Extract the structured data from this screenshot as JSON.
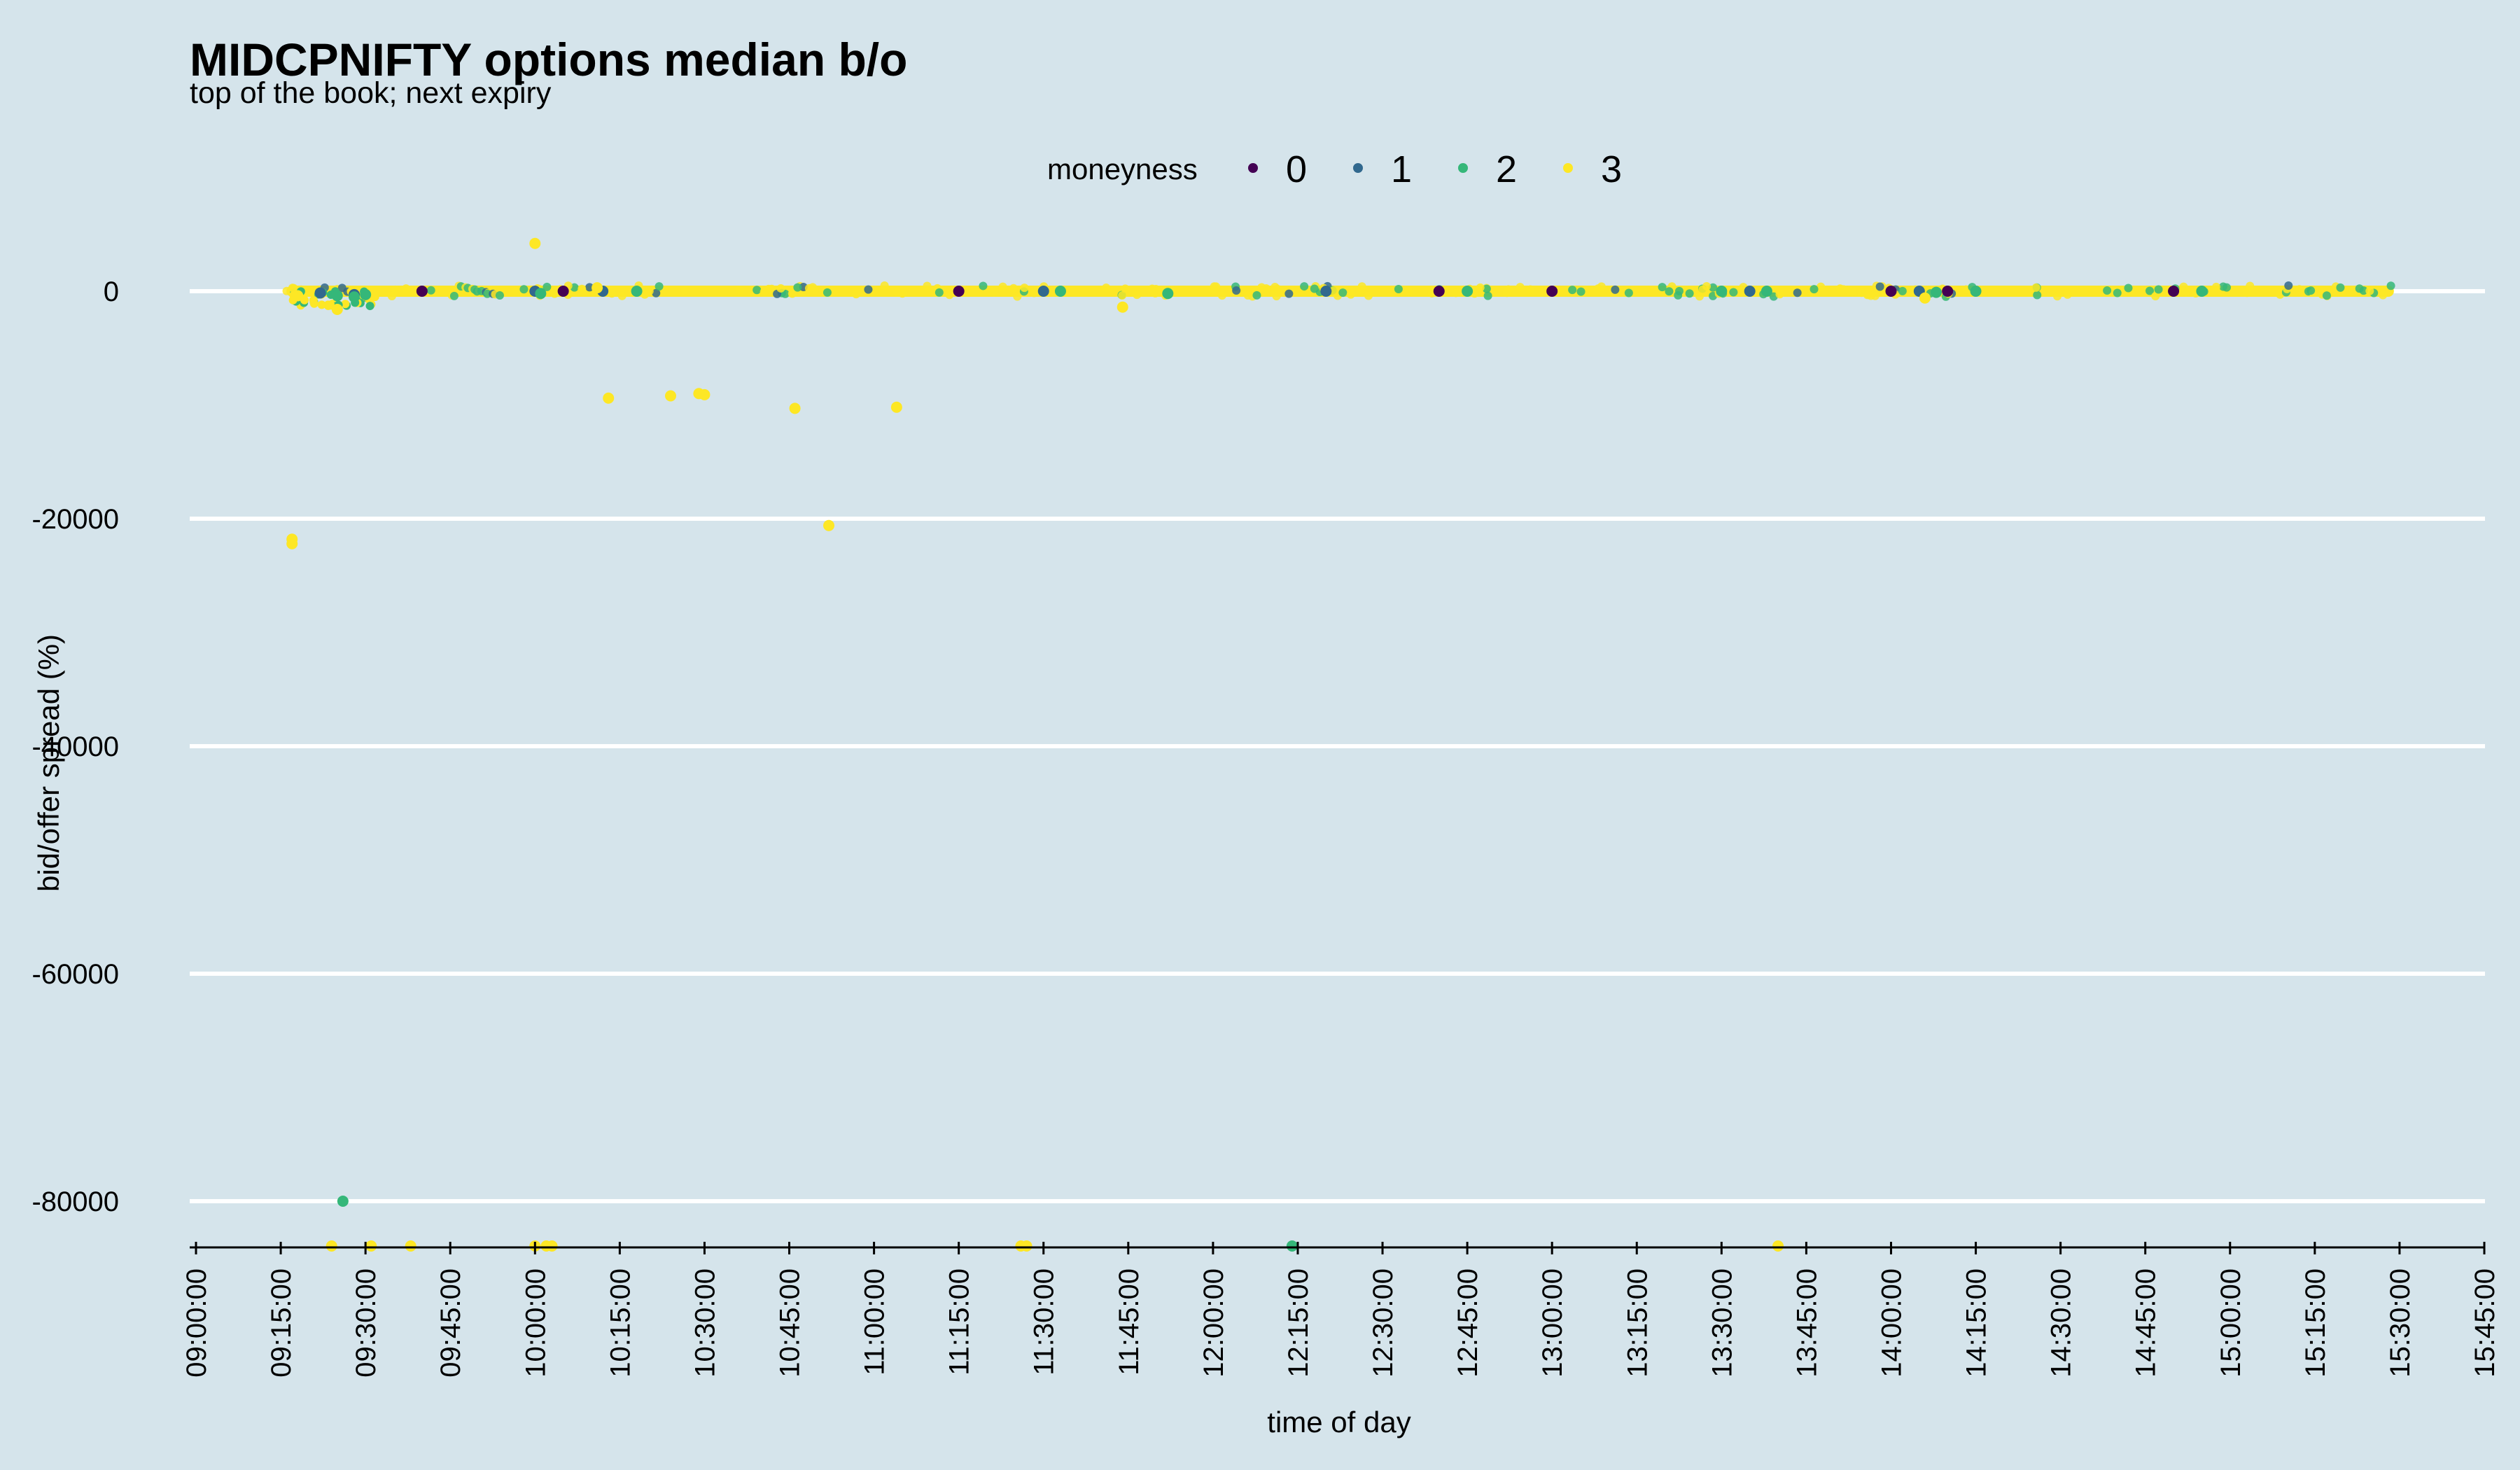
{
  "chart_data": {
    "type": "scatter",
    "title": "MIDCPNIFTY options median b/o",
    "subtitle": "top of the book; next expiry",
    "xlabel": "time of day",
    "ylabel": "bid/offer spread (%)",
    "x_unit": "time",
    "xlim": [
      "09:00:00",
      "15:45:00"
    ],
    "ylim": [
      -84000,
      8000
    ],
    "y_ticks": [
      0,
      -20000,
      -40000,
      -60000,
      -80000
    ],
    "y_tick_labels": [
      "0",
      "-20000",
      "-40000",
      "-60000",
      "-80000"
    ],
    "x_ticks": [
      "09:00:00",
      "09:15:00",
      "09:30:00",
      "09:45:00",
      "10:00:00",
      "10:15:00",
      "10:30:00",
      "10:45:00",
      "11:00:00",
      "11:15:00",
      "11:30:00",
      "11:45:00",
      "12:00:00",
      "12:15:00",
      "12:30:00",
      "12:45:00",
      "13:00:00",
      "13:15:00",
      "13:30:00",
      "13:45:00",
      "14:00:00",
      "14:15:00",
      "14:30:00",
      "14:45:00",
      "15:00:00",
      "15:15:00",
      "15:30:00",
      "15:45:00"
    ],
    "grid": "horizontal",
    "legend": {
      "title": "moneyness",
      "position": "top",
      "entries": [
        {
          "label": "0",
          "color": "#440154"
        },
        {
          "label": "1",
          "color": "#31688e"
        },
        {
          "label": "2",
          "color": "#35b779"
        },
        {
          "label": "3",
          "color": "#fde725"
        }
      ]
    },
    "series": [
      {
        "name": "0",
        "color": "#440154",
        "points": [
          [
            "09:40:00",
            0
          ],
          [
            "10:05:00",
            0
          ],
          [
            "11:15:00",
            0
          ],
          [
            "12:40:00",
            0
          ],
          [
            "13:00:00",
            0
          ],
          [
            "14:00:00",
            0
          ],
          [
            "14:10:00",
            0
          ],
          [
            "14:50:00",
            0
          ]
        ]
      },
      {
        "name": "1",
        "color": "#31688e",
        "points": [
          [
            "09:22:00",
            -150
          ],
          [
            "09:28:00",
            -300
          ],
          [
            "10:00:00",
            0
          ],
          [
            "10:12:00",
            0
          ],
          [
            "11:30:00",
            0
          ],
          [
            "12:20:00",
            0
          ],
          [
            "13:35:00",
            0
          ],
          [
            "14:05:00",
            0
          ]
        ]
      },
      {
        "name": "2",
        "color": "#35b779",
        "points": [
          [
            "09:26:00",
            -80000
          ],
          [
            "12:14:00",
            -84000
          ],
          [
            "09:25:00",
            -400
          ],
          [
            "09:28:00",
            -500
          ],
          [
            "09:30:00",
            -300
          ],
          [
            "10:01:00",
            -200
          ],
          [
            "10:18:00",
            0
          ],
          [
            "11:33:00",
            0
          ],
          [
            "11:52:00",
            -200
          ],
          [
            "12:45:00",
            0
          ],
          [
            "13:30:00",
            0
          ],
          [
            "13:38:00",
            0
          ],
          [
            "14:08:00",
            -100
          ],
          [
            "14:15:00",
            0
          ],
          [
            "14:55:00",
            0
          ]
        ]
      },
      {
        "name": "3",
        "color": "#fde725",
        "points": [
          [
            "09:17:00",
            -21800
          ],
          [
            "09:17:00",
            -22200
          ],
          [
            "09:25:00",
            -1600
          ],
          [
            "09:18:00",
            -400
          ],
          [
            "10:00:00",
            4200
          ],
          [
            "10:13:00",
            -9400
          ],
          [
            "10:24:00",
            -9200
          ],
          [
            "10:29:00",
            -9000
          ],
          [
            "10:30:00",
            -9100
          ],
          [
            "10:46:00",
            -10300
          ],
          [
            "10:52:00",
            -20600
          ],
          [
            "11:04:00",
            -10200
          ],
          [
            "11:44:00",
            -1400
          ],
          [
            "14:06:00",
            -600
          ],
          [
            "10:11:00",
            300
          ],
          [
            "09:24:00",
            -84000
          ],
          [
            "09:31:00",
            -84000
          ],
          [
            "09:38:00",
            -84000
          ],
          [
            "10:00:00",
            -84000
          ],
          [
            "10:02:00",
            -84000
          ],
          [
            "10:03:00",
            -84000
          ],
          [
            "11:26:00",
            -84000
          ],
          [
            "11:27:00",
            -84000
          ],
          [
            "13:40:00",
            -84000
          ]
        ]
      }
    ],
    "dense_band": {
      "series": "3",
      "from": "09:16:00",
      "to": "15:29:00",
      "y": 0
    }
  }
}
